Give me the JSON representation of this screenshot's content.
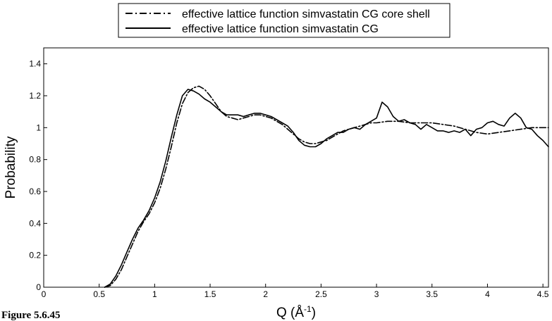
{
  "caption": "Figure 5.6.45",
  "chart_data": {
    "type": "line",
    "xlabel": "Q (Å",
    "xlabel_sup": "-1",
    "xlabel_close": ")",
    "ylabel": "Probability",
    "xlim": [
      0,
      4.55
    ],
    "ylim": [
      0,
      1.5
    ],
    "xticks": [
      0,
      0.5,
      1,
      1.5,
      2,
      2.5,
      3,
      3.5,
      4,
      4.5
    ],
    "xtick_labels": [
      "0",
      "0.5",
      "1",
      "1.5",
      "2",
      "2.5",
      "3",
      "3.5",
      "4",
      "4.5"
    ],
    "yticks": [
      0,
      0.2,
      0.4,
      0.6,
      0.8,
      1,
      1.2,
      1.4
    ],
    "ytick_labels": [
      "0",
      "0.2",
      "0.4",
      "0.6",
      "0.8",
      "1",
      "1.2",
      "1.4"
    ],
    "grid": false,
    "legend_position": "top-center, above plot",
    "series": [
      {
        "name": "effective lattice function simvastatin CG core shell",
        "style": "dash-dot",
        "color": "#000000",
        "x": [
          0.55,
          0.6,
          0.65,
          0.7,
          0.75,
          0.8,
          0.85,
          0.9,
          0.95,
          1.0,
          1.05,
          1.1,
          1.15,
          1.2,
          1.25,
          1.3,
          1.35,
          1.4,
          1.45,
          1.5,
          1.55,
          1.6,
          1.65,
          1.7,
          1.75,
          1.8,
          1.85,
          1.9,
          1.95,
          2.0,
          2.05,
          2.1,
          2.15,
          2.2,
          2.25,
          2.3,
          2.35,
          2.4,
          2.45,
          2.5,
          2.55,
          2.6,
          2.65,
          2.7,
          2.75,
          2.8,
          2.85,
          2.9,
          2.95,
          3.0,
          3.1,
          3.2,
          3.3,
          3.4,
          3.5,
          3.6,
          3.7,
          3.8,
          3.9,
          4.0,
          4.1,
          4.2,
          4.3,
          4.4,
          4.5,
          4.55
        ],
        "values": [
          0.0,
          0.01,
          0.05,
          0.11,
          0.19,
          0.27,
          0.35,
          0.41,
          0.46,
          0.53,
          0.62,
          0.74,
          0.88,
          1.03,
          1.15,
          1.22,
          1.25,
          1.26,
          1.24,
          1.2,
          1.15,
          1.1,
          1.07,
          1.06,
          1.05,
          1.06,
          1.07,
          1.08,
          1.08,
          1.07,
          1.06,
          1.04,
          1.02,
          0.99,
          0.96,
          0.93,
          0.91,
          0.9,
          0.9,
          0.91,
          0.92,
          0.94,
          0.96,
          0.98,
          0.99,
          1.0,
          1.01,
          1.02,
          1.03,
          1.03,
          1.04,
          1.04,
          1.03,
          1.03,
          1.03,
          1.02,
          1.01,
          0.99,
          0.97,
          0.96,
          0.97,
          0.98,
          0.99,
          1.0,
          1.0,
          1.0
        ]
      },
      {
        "name": "effective lattice function simvastatin CG",
        "style": "solid",
        "color": "#000000",
        "x": [
          0.55,
          0.6,
          0.65,
          0.7,
          0.75,
          0.8,
          0.85,
          0.9,
          0.95,
          1.0,
          1.05,
          1.1,
          1.15,
          1.2,
          1.25,
          1.3,
          1.35,
          1.4,
          1.45,
          1.5,
          1.55,
          1.6,
          1.65,
          1.7,
          1.75,
          1.8,
          1.85,
          1.9,
          1.95,
          2.0,
          2.05,
          2.1,
          2.15,
          2.2,
          2.25,
          2.3,
          2.35,
          2.4,
          2.45,
          2.5,
          2.55,
          2.6,
          2.65,
          2.7,
          2.75,
          2.8,
          2.85,
          2.9,
          2.95,
          3.0,
          3.05,
          3.1,
          3.15,
          3.2,
          3.25,
          3.3,
          3.35,
          3.4,
          3.45,
          3.5,
          3.55,
          3.6,
          3.65,
          3.7,
          3.75,
          3.8,
          3.85,
          3.9,
          3.95,
          4.0,
          4.05,
          4.1,
          4.15,
          4.2,
          4.25,
          4.3,
          4.35,
          4.4,
          4.45,
          4.5,
          4.55
        ],
        "values": [
          0.0,
          0.02,
          0.07,
          0.14,
          0.22,
          0.3,
          0.37,
          0.42,
          0.48,
          0.56,
          0.66,
          0.79,
          0.94,
          1.08,
          1.2,
          1.24,
          1.23,
          1.21,
          1.18,
          1.16,
          1.13,
          1.1,
          1.08,
          1.08,
          1.08,
          1.07,
          1.08,
          1.09,
          1.09,
          1.08,
          1.07,
          1.05,
          1.03,
          1.01,
          0.97,
          0.92,
          0.89,
          0.88,
          0.88,
          0.9,
          0.93,
          0.95,
          0.97,
          0.97,
          0.99,
          1.0,
          0.99,
          1.02,
          1.04,
          1.06,
          1.16,
          1.13,
          1.07,
          1.04,
          1.05,
          1.03,
          1.02,
          0.99,
          1.02,
          1.0,
          0.98,
          0.98,
          0.97,
          0.98,
          0.97,
          0.99,
          0.95,
          0.99,
          1.0,
          1.03,
          1.04,
          1.02,
          1.01,
          1.06,
          1.09,
          1.06,
          1.0,
          0.99,
          0.95,
          0.92,
          0.88
        ]
      }
    ]
  }
}
